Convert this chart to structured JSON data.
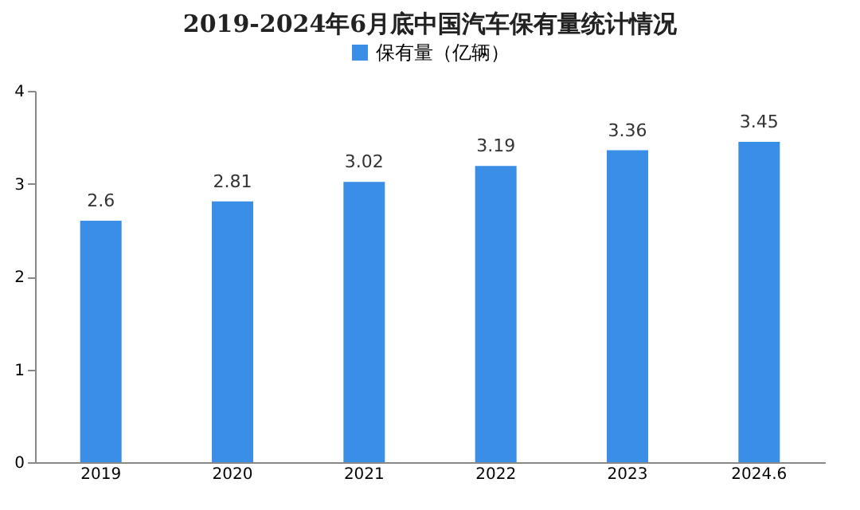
{
  "chart_data": {
    "type": "bar",
    "title": "2019-2024年6月底中国汽车保有量统计情况",
    "categories": [
      "2019",
      "2020",
      "2021",
      "2022",
      "2023",
      "2024.6"
    ],
    "series": [
      {
        "name": "保有量（亿辆）",
        "color": "#3a8ee6",
        "values": [
          2.6,
          2.81,
          3.02,
          3.19,
          3.36,
          3.45
        ]
      }
    ],
    "ylim": [
      0,
      4
    ],
    "yticks": [
      0,
      1,
      2,
      3,
      4
    ],
    "data_labels": true,
    "legend": "top",
    "grid": false
  }
}
